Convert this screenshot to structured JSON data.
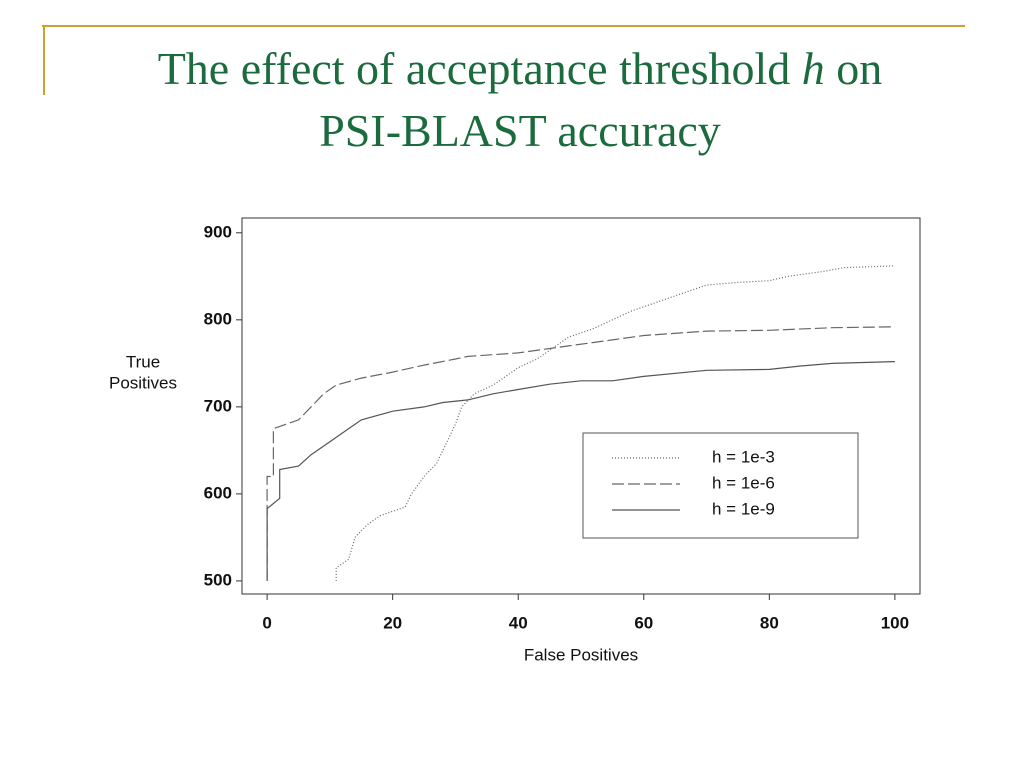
{
  "chart_data": {
    "type": "line",
    "title": [
      "The effect of acceptance threshold",
      "h",
      "on",
      "PSI-BLAST accuracy"
    ],
    "x_label": "False Positives",
    "y_label": [
      "True",
      "Positives"
    ],
    "xlim": [
      -4,
      104
    ],
    "ylim": [
      485,
      917
    ],
    "xticks": [
      0,
      20,
      40,
      60,
      80,
      100
    ],
    "yticks": [
      500,
      600,
      700,
      800,
      900
    ],
    "series": [
      {
        "name": "h = 1e-3",
        "color": "#666666",
        "dash": "1,2",
        "x": [
          11,
          11,
          13,
          14,
          16,
          18,
          20,
          22,
          23,
          25,
          27,
          28,
          30,
          31,
          33,
          36,
          38,
          40,
          43,
          46,
          48,
          52,
          55,
          58,
          62,
          66,
          70,
          75,
          80,
          83,
          88,
          92,
          100
        ],
        "values": [
          500,
          515,
          525,
          550,
          565,
          575,
          580,
          585,
          600,
          620,
          635,
          650,
          680,
          700,
          715,
          725,
          735,
          745,
          755,
          770,
          780,
          790,
          800,
          810,
          820,
          830,
          840,
          843,
          845,
          850,
          855,
          860,
          862
        ]
      },
      {
        "name": "h = 1e-6",
        "color": "#666666",
        "dash": "12,4",
        "x": [
          0,
          0,
          1,
          1,
          5,
          7,
          9,
          11,
          15,
          20,
          25,
          30,
          32,
          40,
          48,
          55,
          60,
          70,
          80,
          90,
          100
        ],
        "values": [
          500,
          620,
          620,
          675,
          685,
          700,
          715,
          725,
          733,
          740,
          748,
          755,
          758,
          762,
          770,
          777,
          782,
          787,
          788,
          791,
          792
        ]
      },
      {
        "name": "h = 1e-9",
        "color": "#555555",
        "dash": "none",
        "x": [
          0,
          0,
          2,
          2,
          5,
          7,
          10,
          13,
          15,
          20,
          25,
          28,
          32,
          36,
          40,
          45,
          50,
          55,
          60,
          70,
          80,
          85,
          90,
          100
        ],
        "values": [
          500,
          583,
          595,
          628,
          632,
          645,
          660,
          675,
          685,
          695,
          700,
          705,
          708,
          715,
          720,
          726,
          730,
          730,
          735,
          742,
          743,
          747,
          750,
          752
        ]
      }
    ]
  }
}
